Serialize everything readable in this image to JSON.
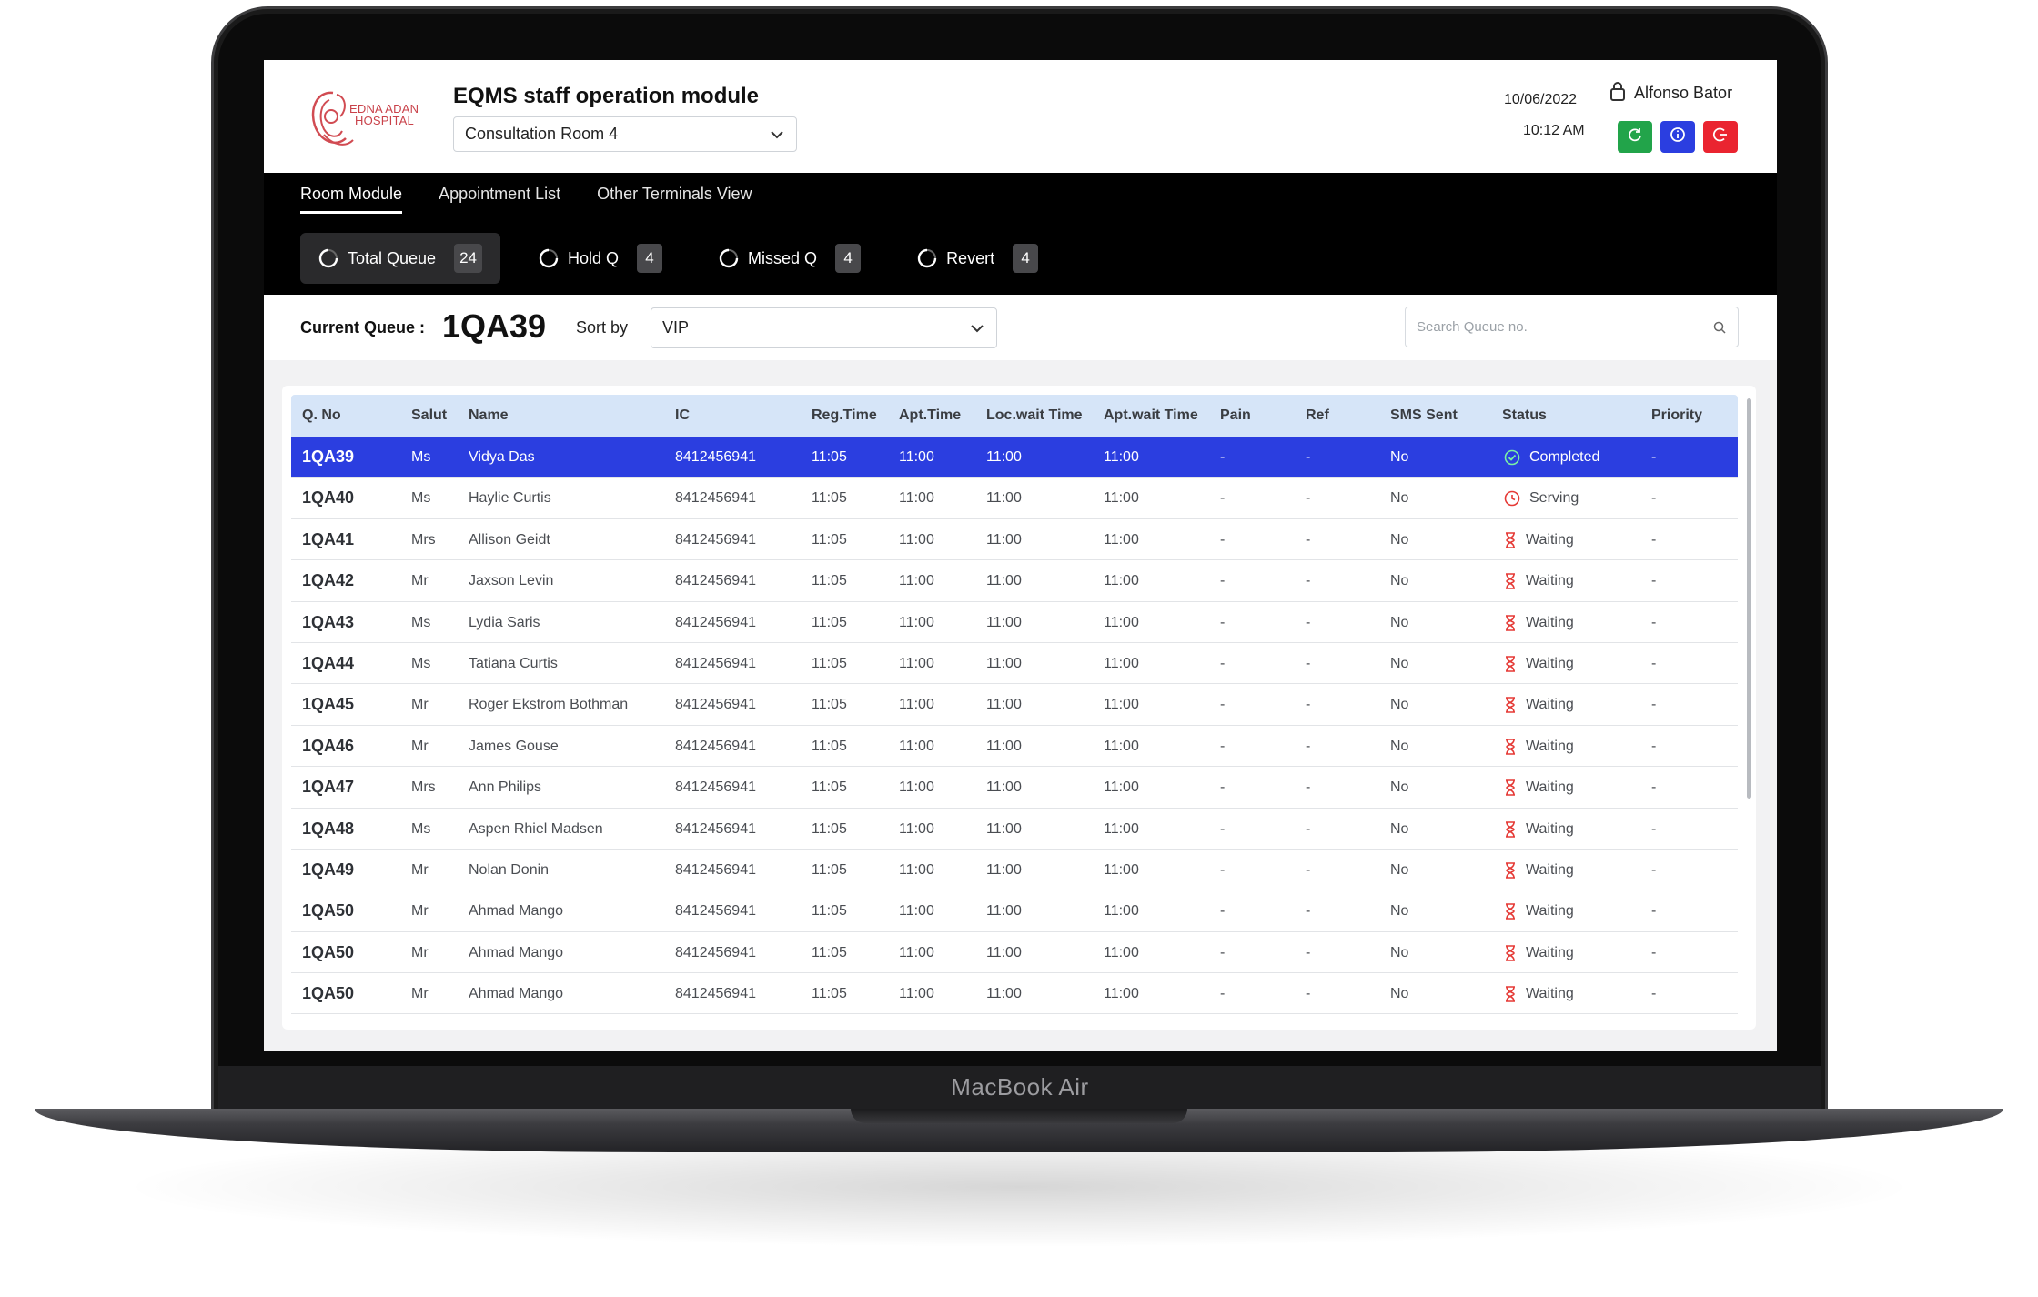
{
  "device": {
    "label": "MacBook Air"
  },
  "header": {
    "logo_text_line1": "EDNA ADAN",
    "logo_text_line2": "HOSPITAL",
    "title": "EQMS staff operation module",
    "room_select": "Consultation Room 4",
    "date": "10/06/2022",
    "time": "10:12 AM",
    "user_name": "Alfonso Bator",
    "actions": [
      {
        "icon": "refresh-icon",
        "color": "#22a44a"
      },
      {
        "icon": "info-icon",
        "color": "#2b3ee0"
      },
      {
        "icon": "logout-icon",
        "color": "#ea2430"
      }
    ]
  },
  "tabs": [
    "Room Module",
    "Appointment List",
    "Other Terminals View"
  ],
  "active_tab": "Room Module",
  "queue_chips": [
    {
      "label": "Total Queue",
      "count": "24",
      "active": true
    },
    {
      "label": "Hold Q",
      "count": "4",
      "active": false
    },
    {
      "label": "Missed Q",
      "count": "4",
      "active": false
    },
    {
      "label": "Revert",
      "count": "4",
      "active": false
    }
  ],
  "queue_bar": {
    "current_label": "Current Queue :",
    "current_value": "1QA39",
    "sort_label": "Sort by",
    "sort_value": "VIP",
    "search_placeholder": "Search Queue no."
  },
  "table": {
    "columns": [
      "Q. No",
      "Salut",
      "Name",
      "IC",
      "Reg.Time",
      "Apt.Time",
      "Loc.wait Time",
      "Apt.wait Time",
      "Pain",
      "Ref",
      "SMS Sent",
      "Status",
      "Priority"
    ],
    "rows": [
      {
        "q": "1QA39",
        "salut": "Ms",
        "name": "Vidya Das",
        "ic": "8412456941",
        "reg": "11:05",
        "apt": "11:00",
        "loc": "11:00",
        "aptw": "11:00",
        "pain": "-",
        "ref": "-",
        "sms": "No",
        "status": "Completed",
        "priority": "-",
        "selected": true
      },
      {
        "q": "1QA40",
        "salut": "Ms",
        "name": "Haylie Curtis",
        "ic": "8412456941",
        "reg": "11:05",
        "apt": "11:00",
        "loc": "11:00",
        "aptw": "11:00",
        "pain": "-",
        "ref": "-",
        "sms": "No",
        "status": "Serving",
        "priority": "-"
      },
      {
        "q": "1QA41",
        "salut": "Mrs",
        "name": "Allison Geidt",
        "ic": "8412456941",
        "reg": "11:05",
        "apt": "11:00",
        "loc": "11:00",
        "aptw": "11:00",
        "pain": "-",
        "ref": "-",
        "sms": "No",
        "status": "Waiting",
        "priority": "-"
      },
      {
        "q": "1QA42",
        "salut": "Mr",
        "name": "Jaxson Levin",
        "ic": "8412456941",
        "reg": "11:05",
        "apt": "11:00",
        "loc": "11:00",
        "aptw": "11:00",
        "pain": "-",
        "ref": "-",
        "sms": "No",
        "status": "Waiting",
        "priority": "-"
      },
      {
        "q": "1QA43",
        "salut": "Ms",
        "name": "Lydia Saris",
        "ic": "8412456941",
        "reg": "11:05",
        "apt": "11:00",
        "loc": "11:00",
        "aptw": "11:00",
        "pain": "-",
        "ref": "-",
        "sms": "No",
        "status": "Waiting",
        "priority": "-"
      },
      {
        "q": "1QA44",
        "salut": "Ms",
        "name": "Tatiana Curtis",
        "ic": "8412456941",
        "reg": "11:05",
        "apt": "11:00",
        "loc": "11:00",
        "aptw": "11:00",
        "pain": "-",
        "ref": "-",
        "sms": "No",
        "status": "Waiting",
        "priority": "-"
      },
      {
        "q": "1QA45",
        "salut": "Mr",
        "name": "Roger Ekstrom Bothman",
        "ic": "8412456941",
        "reg": "11:05",
        "apt": "11:00",
        "loc": "11:00",
        "aptw": "11:00",
        "pain": "-",
        "ref": "-",
        "sms": "No",
        "status": "Waiting",
        "priority": "-"
      },
      {
        "q": "1QA46",
        "salut": "Mr",
        "name": "James Gouse",
        "ic": "8412456941",
        "reg": "11:05",
        "apt": "11:00",
        "loc": "11:00",
        "aptw": "11:00",
        "pain": "-",
        "ref": "-",
        "sms": "No",
        "status": "Waiting",
        "priority": "-"
      },
      {
        "q": "1QA47",
        "salut": "Mrs",
        "name": "Ann Philips",
        "ic": "8412456941",
        "reg": "11:05",
        "apt": "11:00",
        "loc": "11:00",
        "aptw": "11:00",
        "pain": "-",
        "ref": "-",
        "sms": "No",
        "status": "Waiting",
        "priority": "-"
      },
      {
        "q": "1QA48",
        "salut": "Ms",
        "name": "Aspen Rhiel Madsen",
        "ic": "8412456941",
        "reg": "11:05",
        "apt": "11:00",
        "loc": "11:00",
        "aptw": "11:00",
        "pain": "-",
        "ref": "-",
        "sms": "No",
        "status": "Waiting",
        "priority": "-"
      },
      {
        "q": "1QA49",
        "salut": "Mr",
        "name": "Nolan Donin",
        "ic": "8412456941",
        "reg": "11:05",
        "apt": "11:00",
        "loc": "11:00",
        "aptw": "11:00",
        "pain": "-",
        "ref": "-",
        "sms": "No",
        "status": "Waiting",
        "priority": "-"
      },
      {
        "q": "1QA50",
        "salut": "Mr",
        "name": "Ahmad Mango",
        "ic": "8412456941",
        "reg": "11:05",
        "apt": "11:00",
        "loc": "11:00",
        "aptw": "11:00",
        "pain": "-",
        "ref": "-",
        "sms": "No",
        "status": "Waiting",
        "priority": "-"
      },
      {
        "q": "1QA50",
        "salut": "Mr",
        "name": "Ahmad Mango",
        "ic": "8412456941",
        "reg": "11:05",
        "apt": "11:00",
        "loc": "11:00",
        "aptw": "11:00",
        "pain": "-",
        "ref": "-",
        "sms": "No",
        "status": "Waiting",
        "priority": "-"
      },
      {
        "q": "1QA50",
        "salut": "Mr",
        "name": "Ahmad Mango",
        "ic": "8412456941",
        "reg": "11:05",
        "apt": "11:00",
        "loc": "11:00",
        "aptw": "11:00",
        "pain": "-",
        "ref": "-",
        "sms": "No",
        "status": "Waiting",
        "priority": "-"
      }
    ]
  },
  "colors": {
    "accent": "#2b3ee0",
    "header_row": "#d6e5f8",
    "status_completed": "#22a44a",
    "status_serving": "#e53935",
    "status_waiting": "#e53935"
  }
}
